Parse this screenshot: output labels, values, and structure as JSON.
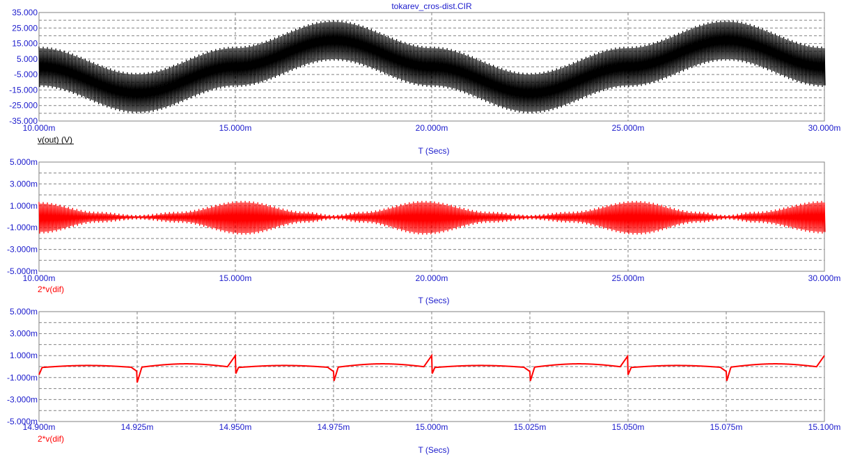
{
  "window": {
    "title": "tokarev_cros-dist.CIR"
  },
  "colors": {
    "axis_text": "#1a1acc",
    "grid": "#808080",
    "frame": "#808080",
    "trace_black": "#000000",
    "trace_red": "#ff0000",
    "legend_black": "#000000"
  },
  "chart_data": [
    {
      "type": "line",
      "title": "",
      "xlabel": "T (Secs)",
      "ylabel": "",
      "grid": true,
      "xlim": [
        10.0,
        30.0
      ],
      "ylim": [
        -35.0,
        35.0
      ],
      "x_unit_scale": "ms",
      "x_ticks": [
        "10.000m",
        "15.000m",
        "20.000m",
        "25.000m",
        "30.000m"
      ],
      "y_ticks": [
        "35.000",
        "25.000",
        "15.000",
        "5.000",
        "-5.000",
        "-15.000",
        "-25.000",
        "-35.000"
      ],
      "series": [
        {
          "name": "v(out) (V)",
          "color": "#000000",
          "shape": "carrier_fill",
          "upper": {
            "x": [
              10.0,
              12.5,
              15.0,
              17.5,
              20.0,
              22.5,
              25.0,
              27.5,
              30.0
            ],
            "y": [
              12.0,
              -5.0,
              12.0,
              29.0,
              12.0,
              -5.0,
              12.0,
              29.0,
              12.0
            ]
          },
          "lower": {
            "x": [
              10.0,
              12.5,
              15.0,
              17.5,
              20.0,
              22.5,
              25.0,
              27.5,
              30.0
            ],
            "y": [
              -12.0,
              -29.0,
              -12.0,
              5.0,
              -12.0,
              -29.0,
              -12.0,
              5.0,
              -12.0
            ]
          }
        }
      ]
    },
    {
      "type": "line",
      "title": "",
      "xlabel": "T (Secs)",
      "ylabel": "",
      "grid": true,
      "xlim": [
        10.0,
        30.0
      ],
      "ylim": [
        -5.0,
        5.0
      ],
      "x_unit_scale": "ms",
      "x_ticks": [
        "10.000m",
        "15.000m",
        "20.000m",
        "25.000m",
        "30.000m"
      ],
      "y_ticks": [
        "5.000m",
        "3.000m",
        "1.000m",
        "-1.000m",
        "-3.000m",
        "-5.000m"
      ],
      "series": [
        {
          "name": "2*v(dif)",
          "color": "#ff0000",
          "shape": "carrier_fill",
          "upper": {
            "x": [
              10.0,
              11.5,
              12.5,
              13.5,
              15.2,
              16.8,
              17.5,
              18.2,
              19.8,
              21.5,
              22.5,
              23.5,
              25.2,
              26.8,
              27.5,
              28.2,
              30.0
            ],
            "y": [
              1.2,
              0.3,
              0.0,
              0.3,
              1.3,
              0.3,
              0.0,
              0.3,
              1.3,
              0.3,
              0.0,
              0.3,
              1.3,
              0.3,
              0.0,
              0.3,
              1.3
            ]
          },
          "lower": {
            "x": [
              10.0,
              11.5,
              12.5,
              13.5,
              15.2,
              16.8,
              17.5,
              18.2,
              19.8,
              21.5,
              22.5,
              23.5,
              25.2,
              26.8,
              27.5,
              28.2,
              30.0
            ],
            "y": [
              -1.4,
              -0.4,
              -0.1,
              -0.4,
              -1.5,
              -0.4,
              -0.1,
              -0.4,
              -1.5,
              -0.4,
              -0.1,
              -0.4,
              -1.5,
              -0.4,
              -0.1,
              -0.4,
              -1.4
            ]
          }
        }
      ]
    },
    {
      "type": "line",
      "title": "",
      "xlabel": "T (Secs)",
      "ylabel": "",
      "grid": true,
      "xlim": [
        14.9,
        15.1
      ],
      "ylim": [
        -5.0,
        5.0
      ],
      "x_unit_scale": "ms",
      "x_ticks": [
        "14.900m",
        "14.925m",
        "14.950m",
        "14.975m",
        "15.000m",
        "15.025m",
        "15.050m",
        "15.075m",
        "15.100m"
      ],
      "y_ticks": [
        "5.000m",
        "3.000m",
        "1.000m",
        "-1.000m",
        "-3.000m",
        "-5.000m"
      ],
      "series": [
        {
          "name": "2*v(dif)",
          "color": "#ff0000",
          "shape": "periodic_line",
          "period_ms": 0.05,
          "first_event_ms": 14.925,
          "baseline": -0.1,
          "peak_positive": 1.0,
          "dip_negative": -1.6
        }
      ]
    }
  ]
}
